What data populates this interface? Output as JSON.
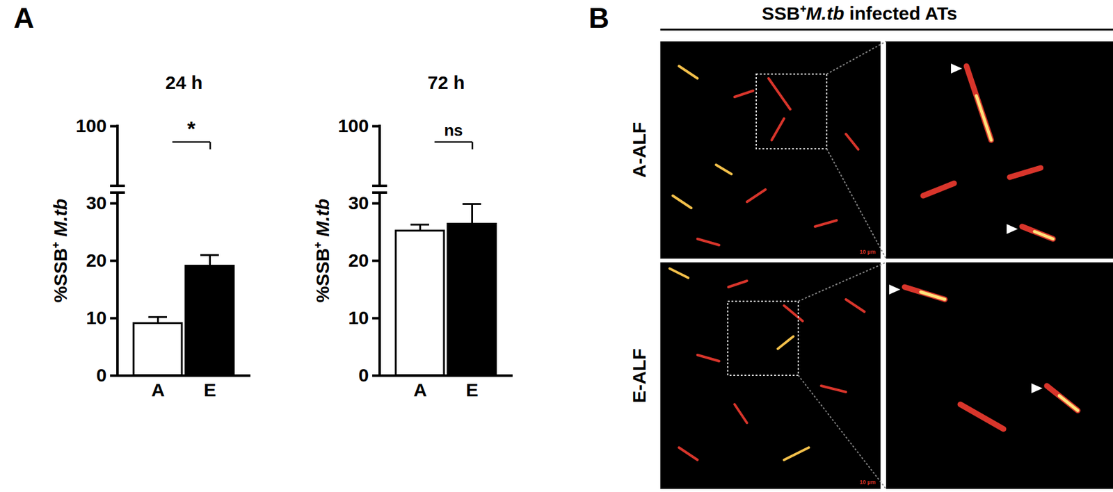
{
  "panel_labels": [
    "A",
    "B"
  ],
  "chart_data": [
    {
      "type": "bar",
      "title": "24 h",
      "categories": [
        "A",
        "E"
      ],
      "values": [
        9.1,
        19.1
      ],
      "errors": [
        1.1,
        1.9
      ],
      "colors": [
        "#ffffff",
        "#000000"
      ],
      "ylabel": "%SSB⁺ M.tb",
      "ylim": [
        0,
        100
      ],
      "yticks": [
        0,
        10,
        20,
        30,
        100
      ],
      "annotations": [
        {
          "text": "*",
          "from": "A",
          "to": "E"
        }
      ]
    },
    {
      "type": "bar",
      "title": "72 h",
      "categories": [
        "A",
        "E"
      ],
      "values": [
        25.2,
        26.4
      ],
      "errors": [
        1.1,
        3.5
      ],
      "colors": [
        "#ffffff",
        "#000000"
      ],
      "ylabel": "%SSB⁺ M.tb",
      "ylim": [
        0,
        100
      ],
      "yticks": [
        0,
        10,
        20,
        30,
        100
      ],
      "annotations": [
        {
          "text": "ns",
          "from": "A",
          "to": "E"
        }
      ]
    }
  ],
  "image_panel": {
    "title": "SSB⁺M.tb infected ATs",
    "rows": [
      "A-ALF",
      "E-ALF"
    ],
    "scale_bar": "10 µm"
  }
}
